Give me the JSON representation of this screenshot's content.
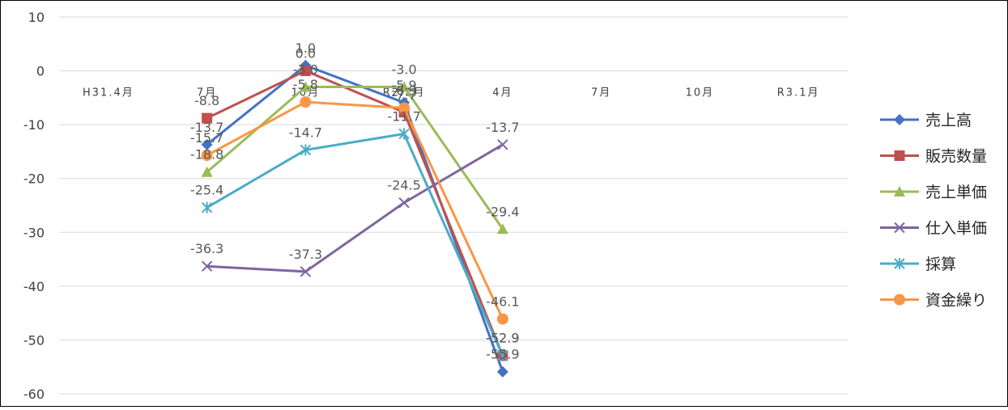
{
  "chart_data": {
    "type": "line",
    "categories": [
      "H31.4月",
      "7月",
      "10月",
      "R2.1月",
      "4月",
      "7月",
      "10月",
      "R3.1月"
    ],
    "ylim": [
      -60,
      10
    ],
    "yticks": [
      10,
      0,
      -10,
      -20,
      -30,
      -40,
      -50,
      -60
    ],
    "grid": "horizontal",
    "legend_position": "right",
    "series": [
      {
        "name": "売上高",
        "color": "#4472C4",
        "marker": "diamond",
        "values": [
          null,
          -13.7,
          1.0,
          -5.9,
          -55.9,
          null,
          null,
          null
        ]
      },
      {
        "name": "販売数量",
        "color": "#C0504D",
        "marker": "square",
        "values": [
          null,
          -8.8,
          0.0,
          -7.7,
          -52.9,
          null,
          null,
          null
        ]
      },
      {
        "name": "売上単価",
        "color": "#9BBB59",
        "marker": "triangle",
        "values": [
          null,
          -18.8,
          -3.0,
          -3.0,
          -29.4,
          null,
          null,
          null
        ]
      },
      {
        "name": "仕入単価",
        "color": "#8064A2",
        "marker": "x",
        "values": [
          null,
          -36.3,
          -37.3,
          -24.5,
          -13.7,
          null,
          null,
          null
        ]
      },
      {
        "name": "採算",
        "color": "#4BACC6",
        "marker": "star",
        "values": [
          null,
          -25.4,
          -14.7,
          -11.7,
          -52.9,
          null,
          null,
          null
        ]
      },
      {
        "name": "資金繰り",
        "color": "#F79646",
        "marker": "circle",
        "values": [
          null,
          -15.7,
          -5.8,
          -6.9,
          -46.1,
          null,
          null,
          null
        ]
      }
    ]
  }
}
